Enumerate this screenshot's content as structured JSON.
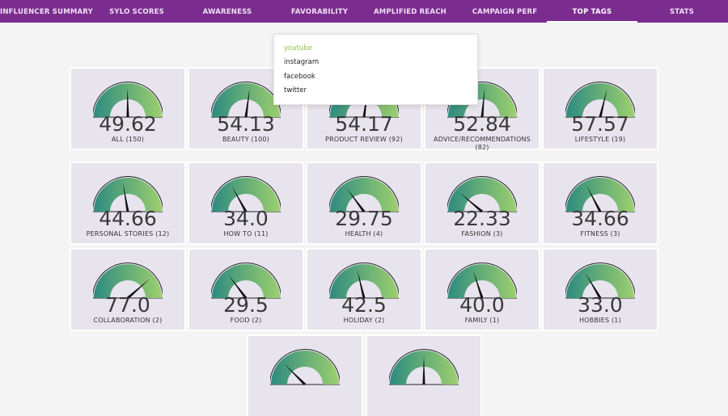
{
  "nav": {
    "tabs": [
      {
        "label": "INFLUENCER SUMMARY",
        "active": false
      },
      {
        "label": "SYLO SCORES",
        "active": false
      },
      {
        "label": "AWARENESS",
        "active": false
      },
      {
        "label": "FAVORABILITY",
        "active": false
      },
      {
        "label": "AMPLIFIED REACH",
        "active": false
      },
      {
        "label": "CAMPAIGN PERF",
        "active": false
      },
      {
        "label": "TOP TAGS",
        "active": true
      },
      {
        "label": "STATS",
        "active": false
      }
    ]
  },
  "dropdown": {
    "options": [
      "youtube",
      "instagram",
      "facebook",
      "twitter"
    ],
    "selected": "youtube"
  },
  "colors": {
    "nav_bg": "#7a2c8f",
    "gauge_start": "#2e8b80",
    "gauge_end": "#9ccf6e",
    "dropdown_selected": "#8ec24b",
    "tile_bg": "#e7e4ee"
  },
  "gauge_scale": {
    "min": 0,
    "max": 100
  },
  "tags": [
    {
      "score": "49.62",
      "value": 49.62,
      "label": "ALL (150)"
    },
    {
      "score": "54.13",
      "value": 54.13,
      "label": "BEAUTY (100)"
    },
    {
      "score": "54.17",
      "value": 54.17,
      "label": "PRODUCT REVIEW (92)"
    },
    {
      "score": "52.84",
      "value": 52.84,
      "label": "ADVICE/RECOMMENDATIONS (82)"
    },
    {
      "score": "57.57",
      "value": 57.57,
      "label": "LIFESTYLE (19)"
    },
    {
      "score": "44.66",
      "value": 44.66,
      "label": "PERSONAL STORIES (12)"
    },
    {
      "score": "34.0",
      "value": 34.0,
      "label": "HOW TO (11)"
    },
    {
      "score": "29.75",
      "value": 29.75,
      "label": "HEALTH (4)"
    },
    {
      "score": "22.33",
      "value": 22.33,
      "label": "FASHION (3)"
    },
    {
      "score": "34.66",
      "value": 34.66,
      "label": "FITNESS (3)"
    },
    {
      "score": "77.0",
      "value": 77.0,
      "label": "COLLABORATION (2)"
    },
    {
      "score": "29.5",
      "value": 29.5,
      "label": "FOOD (2)"
    },
    {
      "score": "42.5",
      "value": 42.5,
      "label": "HOLIDAY (2)"
    },
    {
      "score": "40.0",
      "value": 40.0,
      "label": "FAMILY (1)"
    },
    {
      "score": "33.0",
      "value": 33.0,
      "label": "HOBBIES (1)"
    },
    {
      "score": "",
      "value": 25,
      "label": ""
    },
    {
      "score": "",
      "value": 50,
      "label": ""
    }
  ]
}
